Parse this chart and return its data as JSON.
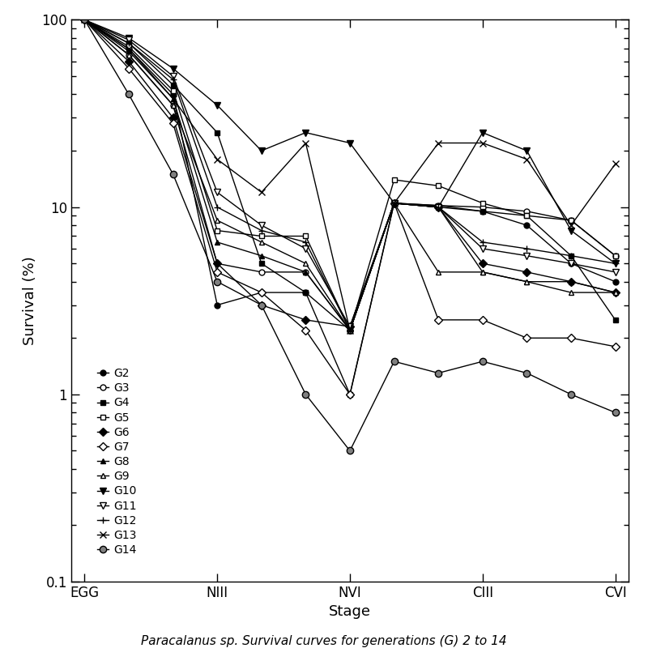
{
  "x_positions": [
    0,
    1,
    2,
    3,
    4,
    5,
    6,
    7,
    8,
    9,
    10,
    11,
    12
  ],
  "x_tick_positions": [
    0,
    3,
    6,
    9,
    12
  ],
  "x_tick_labels": [
    "EGG",
    "NIII",
    "NVI",
    "CIII",
    "CVI"
  ],
  "ylabel": "Survival (%)",
  "xlabel": "Stage",
  "ylim_log": [
    0.1,
    100
  ],
  "caption_italic": "Paracalanus",
  "caption_normal": " sp. Survival curves for generations (G) 2 to 14",
  "series": [
    {
      "name": "G2",
      "marker": "o",
      "filled": true,
      "markersize": 5,
      "data": [
        100,
        70,
        40,
        3.0,
        3.5,
        3.5,
        2.2,
        10.5,
        10.0,
        9.5,
        8.0,
        5.0,
        4.0
      ]
    },
    {
      "name": "G3",
      "marker": "o",
      "filled": false,
      "markersize": 5,
      "data": [
        100,
        65,
        35,
        5.0,
        4.5,
        4.5,
        2.2,
        10.5,
        10.2,
        10.0,
        9.5,
        8.5,
        5.5
      ]
    },
    {
      "name": "G4",
      "marker": "s",
      "filled": true,
      "markersize": 5,
      "data": [
        100,
        75,
        45,
        25.0,
        5.0,
        3.5,
        1.0,
        10.5,
        10.2,
        9.5,
        9.0,
        5.5,
        2.5
      ]
    },
    {
      "name": "G5",
      "marker": "s",
      "filled": false,
      "markersize": 5,
      "data": [
        100,
        72,
        42,
        7.5,
        7.0,
        7.0,
        2.2,
        14.0,
        13.0,
        10.5,
        9.0,
        8.5,
        5.5
      ]
    },
    {
      "name": "G6",
      "marker": "D",
      "filled": true,
      "markersize": 5,
      "data": [
        100,
        60,
        30,
        5.0,
        3.0,
        2.5,
        2.3,
        10.5,
        10.0,
        5.0,
        4.5,
        4.0,
        3.5
      ]
    },
    {
      "name": "G7",
      "marker": "D",
      "filled": false,
      "markersize": 5,
      "data": [
        100,
        55,
        28,
        4.5,
        3.5,
        2.2,
        1.0,
        10.5,
        2.5,
        2.5,
        2.0,
        2.0,
        1.8
      ]
    },
    {
      "name": "G8",
      "marker": "^",
      "filled": true,
      "markersize": 5,
      "data": [
        100,
        68,
        38,
        6.5,
        5.5,
        4.5,
        2.2,
        10.5,
        10.0,
        4.5,
        4.0,
        4.0,
        3.5
      ]
    },
    {
      "name": "G9",
      "marker": "^",
      "filled": false,
      "markersize": 5,
      "data": [
        100,
        65,
        35,
        8.5,
        6.5,
        5.0,
        2.2,
        10.5,
        4.5,
        4.5,
        4.0,
        3.5,
        3.5
      ]
    },
    {
      "name": "G10",
      "marker": "v",
      "filled": true,
      "markersize": 6,
      "data": [
        100,
        80,
        55,
        35.0,
        20.0,
        25.0,
        22.0,
        10.5,
        10.0,
        25.0,
        20.0,
        7.5,
        5.0
      ]
    },
    {
      "name": "G11",
      "marker": "v",
      "filled": false,
      "markersize": 6,
      "data": [
        100,
        78,
        50,
        12.0,
        8.0,
        6.0,
        2.3,
        10.5,
        10.0,
        6.0,
        5.5,
        5.0,
        4.5
      ]
    },
    {
      "name": "G12",
      "marker": "P",
      "filled": true,
      "markersize": 6,
      "data": [
        100,
        75,
        48,
        10.0,
        7.5,
        6.5,
        2.2,
        10.5,
        10.0,
        6.5,
        6.0,
        5.5,
        5.0
      ]
    },
    {
      "name": "G13",
      "marker": "X",
      "filled": true,
      "markersize": 6,
      "data": [
        100,
        70,
        38,
        18.0,
        12.0,
        22.0,
        2.2,
        10.5,
        22.0,
        22.0,
        18.0,
        8.0,
        17.0
      ]
    },
    {
      "name": "G14",
      "marker": "o",
      "filled": "circle_dot",
      "markersize": 6,
      "data": [
        100,
        40,
        15,
        4.0,
        3.0,
        1.0,
        0.5,
        1.5,
        1.3,
        1.5,
        1.3,
        1.0,
        0.8
      ]
    }
  ]
}
